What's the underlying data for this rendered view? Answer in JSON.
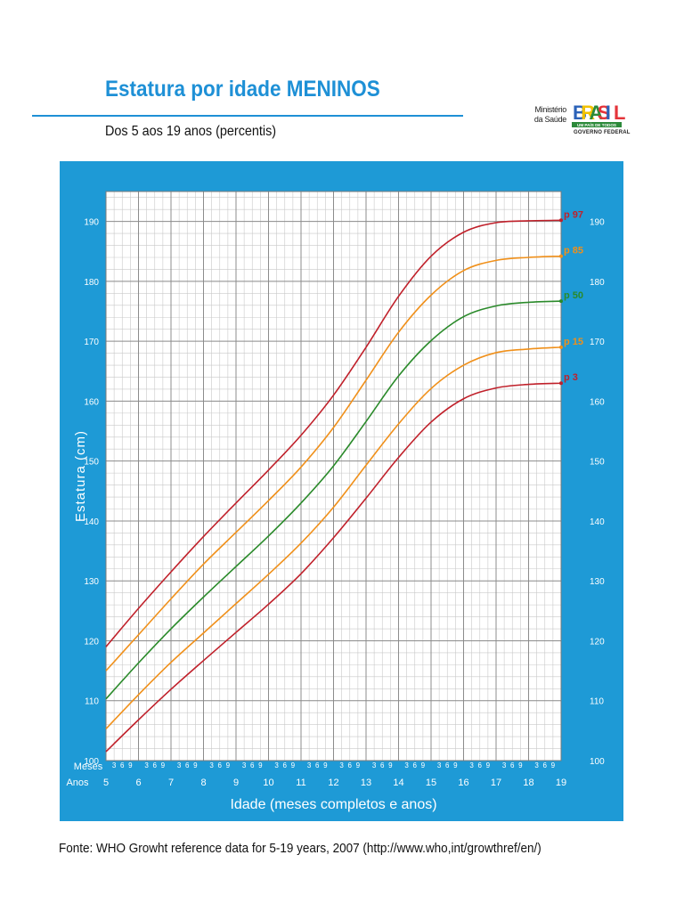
{
  "header": {
    "title": "Estatura por idade MENINOS",
    "subtitle": "Dos 5 aos 19 anos (percentis)"
  },
  "logo": {
    "ministry_line1": "Ministério",
    "ministry_line2": "da Saúde",
    "brand_letters": [
      "B",
      "R",
      "A",
      "S",
      "I",
      "L"
    ],
    "tagline": "UM PAÍS DE TODOS",
    "government": "GOVERNO FEDERAL"
  },
  "footer": {
    "source": "Fonte: WHO Growht reference data for 5-19 years, 2007 (http://www.who,int/growthref/en/)"
  },
  "chart_data": {
    "type": "line",
    "title": "Estatura por idade MENINOS",
    "xlabel": "Idade (meses completos e anos)",
    "ylabel": "Estatura (cm)",
    "xlim": [
      5,
      19
    ],
    "ylim": [
      100,
      195
    ],
    "x_ticks": [
      5,
      6,
      7,
      8,
      9,
      10,
      11,
      12,
      13,
      14,
      15,
      16,
      17,
      18,
      19
    ],
    "month_ticks": [
      "3",
      "6",
      "9"
    ],
    "y_ticks": [
      100,
      110,
      120,
      130,
      140,
      150,
      160,
      170,
      180,
      190
    ],
    "row_label_months": "Meses",
    "row_label_years": "Anos",
    "grid": true,
    "legend": "right-end labels",
    "x": [
      5,
      6,
      7,
      8,
      9,
      10,
      11,
      12,
      13,
      14,
      15,
      16,
      17,
      18,
      19
    ],
    "series": [
      {
        "name": "p 97",
        "color": "#c0202a",
        "values": [
          119.0,
          125.4,
          131.5,
          137.4,
          143.0,
          148.5,
          154.3,
          161.0,
          169.0,
          177.5,
          184.2,
          188.2,
          189.8,
          190.1,
          190.2
        ]
      },
      {
        "name": "p 85",
        "color": "#f0901a",
        "values": [
          115.0,
          121.0,
          127.0,
          132.8,
          138.1,
          143.4,
          149.0,
          155.6,
          163.5,
          171.5,
          177.7,
          181.8,
          183.5,
          184.0,
          184.2
        ]
      },
      {
        "name": "p 50",
        "color": "#2a8a2a",
        "values": [
          110.3,
          116.3,
          122.0,
          127.3,
          132.4,
          137.5,
          143.0,
          149.2,
          156.6,
          164.2,
          170.1,
          174.1,
          175.9,
          176.5,
          176.7
        ]
      },
      {
        "name": "p 15",
        "color": "#f0901a",
        "values": [
          105.3,
          111.0,
          116.4,
          121.3,
          126.2,
          131.1,
          136.3,
          142.3,
          149.3,
          156.2,
          162.1,
          166.0,
          168.1,
          168.7,
          169.0
        ]
      },
      {
        "name": "p 3",
        "color": "#c0202a",
        "values": [
          101.5,
          106.8,
          111.9,
          116.7,
          121.4,
          126.1,
          131.2,
          137.2,
          143.8,
          150.6,
          156.5,
          160.4,
          162.2,
          162.8,
          163.0
        ]
      }
    ]
  }
}
